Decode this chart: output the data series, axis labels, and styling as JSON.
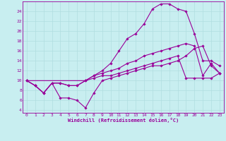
{
  "xlabel": "Windchill (Refroidissement éolien,°C)",
  "bg_color": "#c8eef0",
  "line_color": "#990099",
  "grid_color": "#b0dde0",
  "xlim": [
    -0.5,
    23.5
  ],
  "ylim": [
    3.5,
    26.0
  ],
  "yticks": [
    4,
    6,
    8,
    10,
    12,
    14,
    16,
    18,
    20,
    22,
    24
  ],
  "xticks": [
    0,
    1,
    2,
    3,
    4,
    5,
    6,
    7,
    8,
    9,
    10,
    11,
    12,
    13,
    14,
    15,
    16,
    17,
    18,
    19,
    20,
    21,
    22,
    23
  ],
  "line1_x": [
    0,
    1,
    2,
    3,
    4,
    5,
    6,
    7,
    8,
    9,
    10,
    11,
    12,
    13,
    14,
    15,
    16,
    17,
    18,
    19,
    20,
    21,
    22,
    23
  ],
  "line1_y": [
    10,
    9,
    7.5,
    9.5,
    6.5,
    6.5,
    6,
    4.5,
    7.5,
    10,
    10.5,
    11,
    11.5,
    12,
    12.5,
    13,
    13,
    13.5,
    14,
    15,
    16.5,
    17,
    13,
    11.5
  ],
  "line2_x": [
    0,
    7,
    8,
    9,
    10,
    11,
    12,
    13,
    14,
    15,
    16,
    17,
    18,
    19,
    20,
    21,
    22,
    23
  ],
  "line2_y": [
    10,
    10,
    11,
    12,
    13.5,
    16,
    18.5,
    19.5,
    21.5,
    24.5,
    25.5,
    25.5,
    24.5,
    24,
    19.5,
    14,
    14,
    13
  ],
  "line3_x": [
    0,
    1,
    2,
    3,
    4,
    5,
    6,
    7,
    8,
    9,
    10,
    11,
    12,
    13,
    14,
    15,
    16,
    17,
    18,
    19,
    20,
    21,
    22,
    23
  ],
  "line3_y": [
    10,
    9,
    7.5,
    9.5,
    9.5,
    9,
    9,
    10,
    11,
    11.5,
    12,
    12.5,
    13.5,
    14,
    15,
    15.5,
    16,
    16.5,
    17,
    17.5,
    17,
    11,
    13.5,
    11.5
  ],
  "line4_x": [
    0,
    1,
    2,
    3,
    4,
    5,
    6,
    7,
    8,
    9,
    10,
    11,
    12,
    13,
    14,
    15,
    16,
    17,
    18,
    19,
    20,
    21,
    22,
    23
  ],
  "line4_y": [
    10,
    9,
    7.5,
    9.5,
    9.5,
    9,
    9,
    10,
    10.5,
    11,
    11,
    11.5,
    12,
    12.5,
    13,
    13.5,
    14,
    14.5,
    15,
    10.5,
    10.5,
    10.5,
    10.5,
    11.5
  ]
}
